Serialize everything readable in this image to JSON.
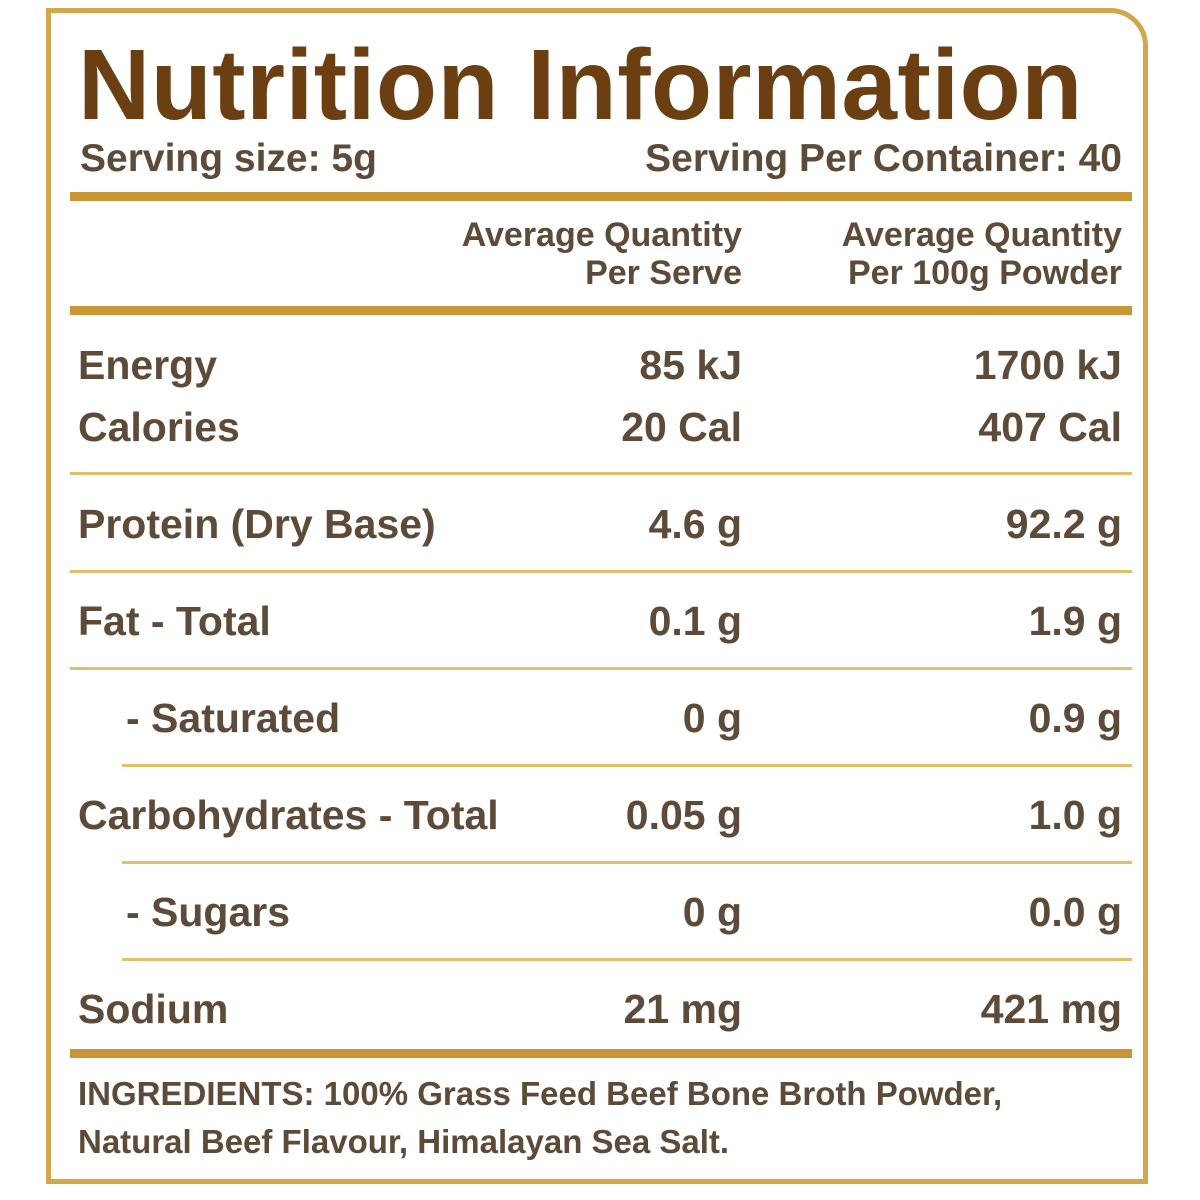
{
  "title": "Nutrition Information",
  "serving_size": "Serving size: 5g",
  "serving_per_container": "Serving Per Container: 40",
  "columns": {
    "per_serve_line1": "Average Quantity",
    "per_serve_line2": "Per Serve",
    "per_100g_line1": "Average Quantity",
    "per_100g_line2": "Per 100g Powder"
  },
  "rows": [
    {
      "name": "Energy",
      "per_serve": "85 kJ",
      "per_100g": "1700 kJ"
    },
    {
      "name": "Calories",
      "per_serve": "20 Cal",
      "per_100g": "407 Cal"
    },
    {
      "name": "Protein (Dry Base)",
      "per_serve": "4.6 g",
      "per_100g": "92.2 g"
    },
    {
      "name": "Fat - Total",
      "per_serve": "0.1 g",
      "per_100g": "1.9 g"
    },
    {
      "name": "- Saturated",
      "per_serve": "0 g",
      "per_100g": "0.9 g"
    },
    {
      "name": "Carbohydrates - Total",
      "per_serve": "0.05 g",
      "per_100g": "1.0 g"
    },
    {
      "name": "- Sugars",
      "per_serve": "0 g",
      "per_100g": "0.0 g"
    },
    {
      "name": "Sodium",
      "per_serve": "21 mg",
      "per_100g": "421 mg"
    }
  ],
  "ingredients_line1": "INGREDIENTS: 100% Grass Feed Beef Bone Broth Powder,",
  "ingredients_line2": "Natural Beef Flavour, Himalayan Sea Salt.",
  "colors": {
    "title": "#6b3f12",
    "text": "#5e4a38",
    "border": "#d1a74c",
    "thick_rule": "#c99535",
    "thin_rule": "#e0c06f"
  }
}
